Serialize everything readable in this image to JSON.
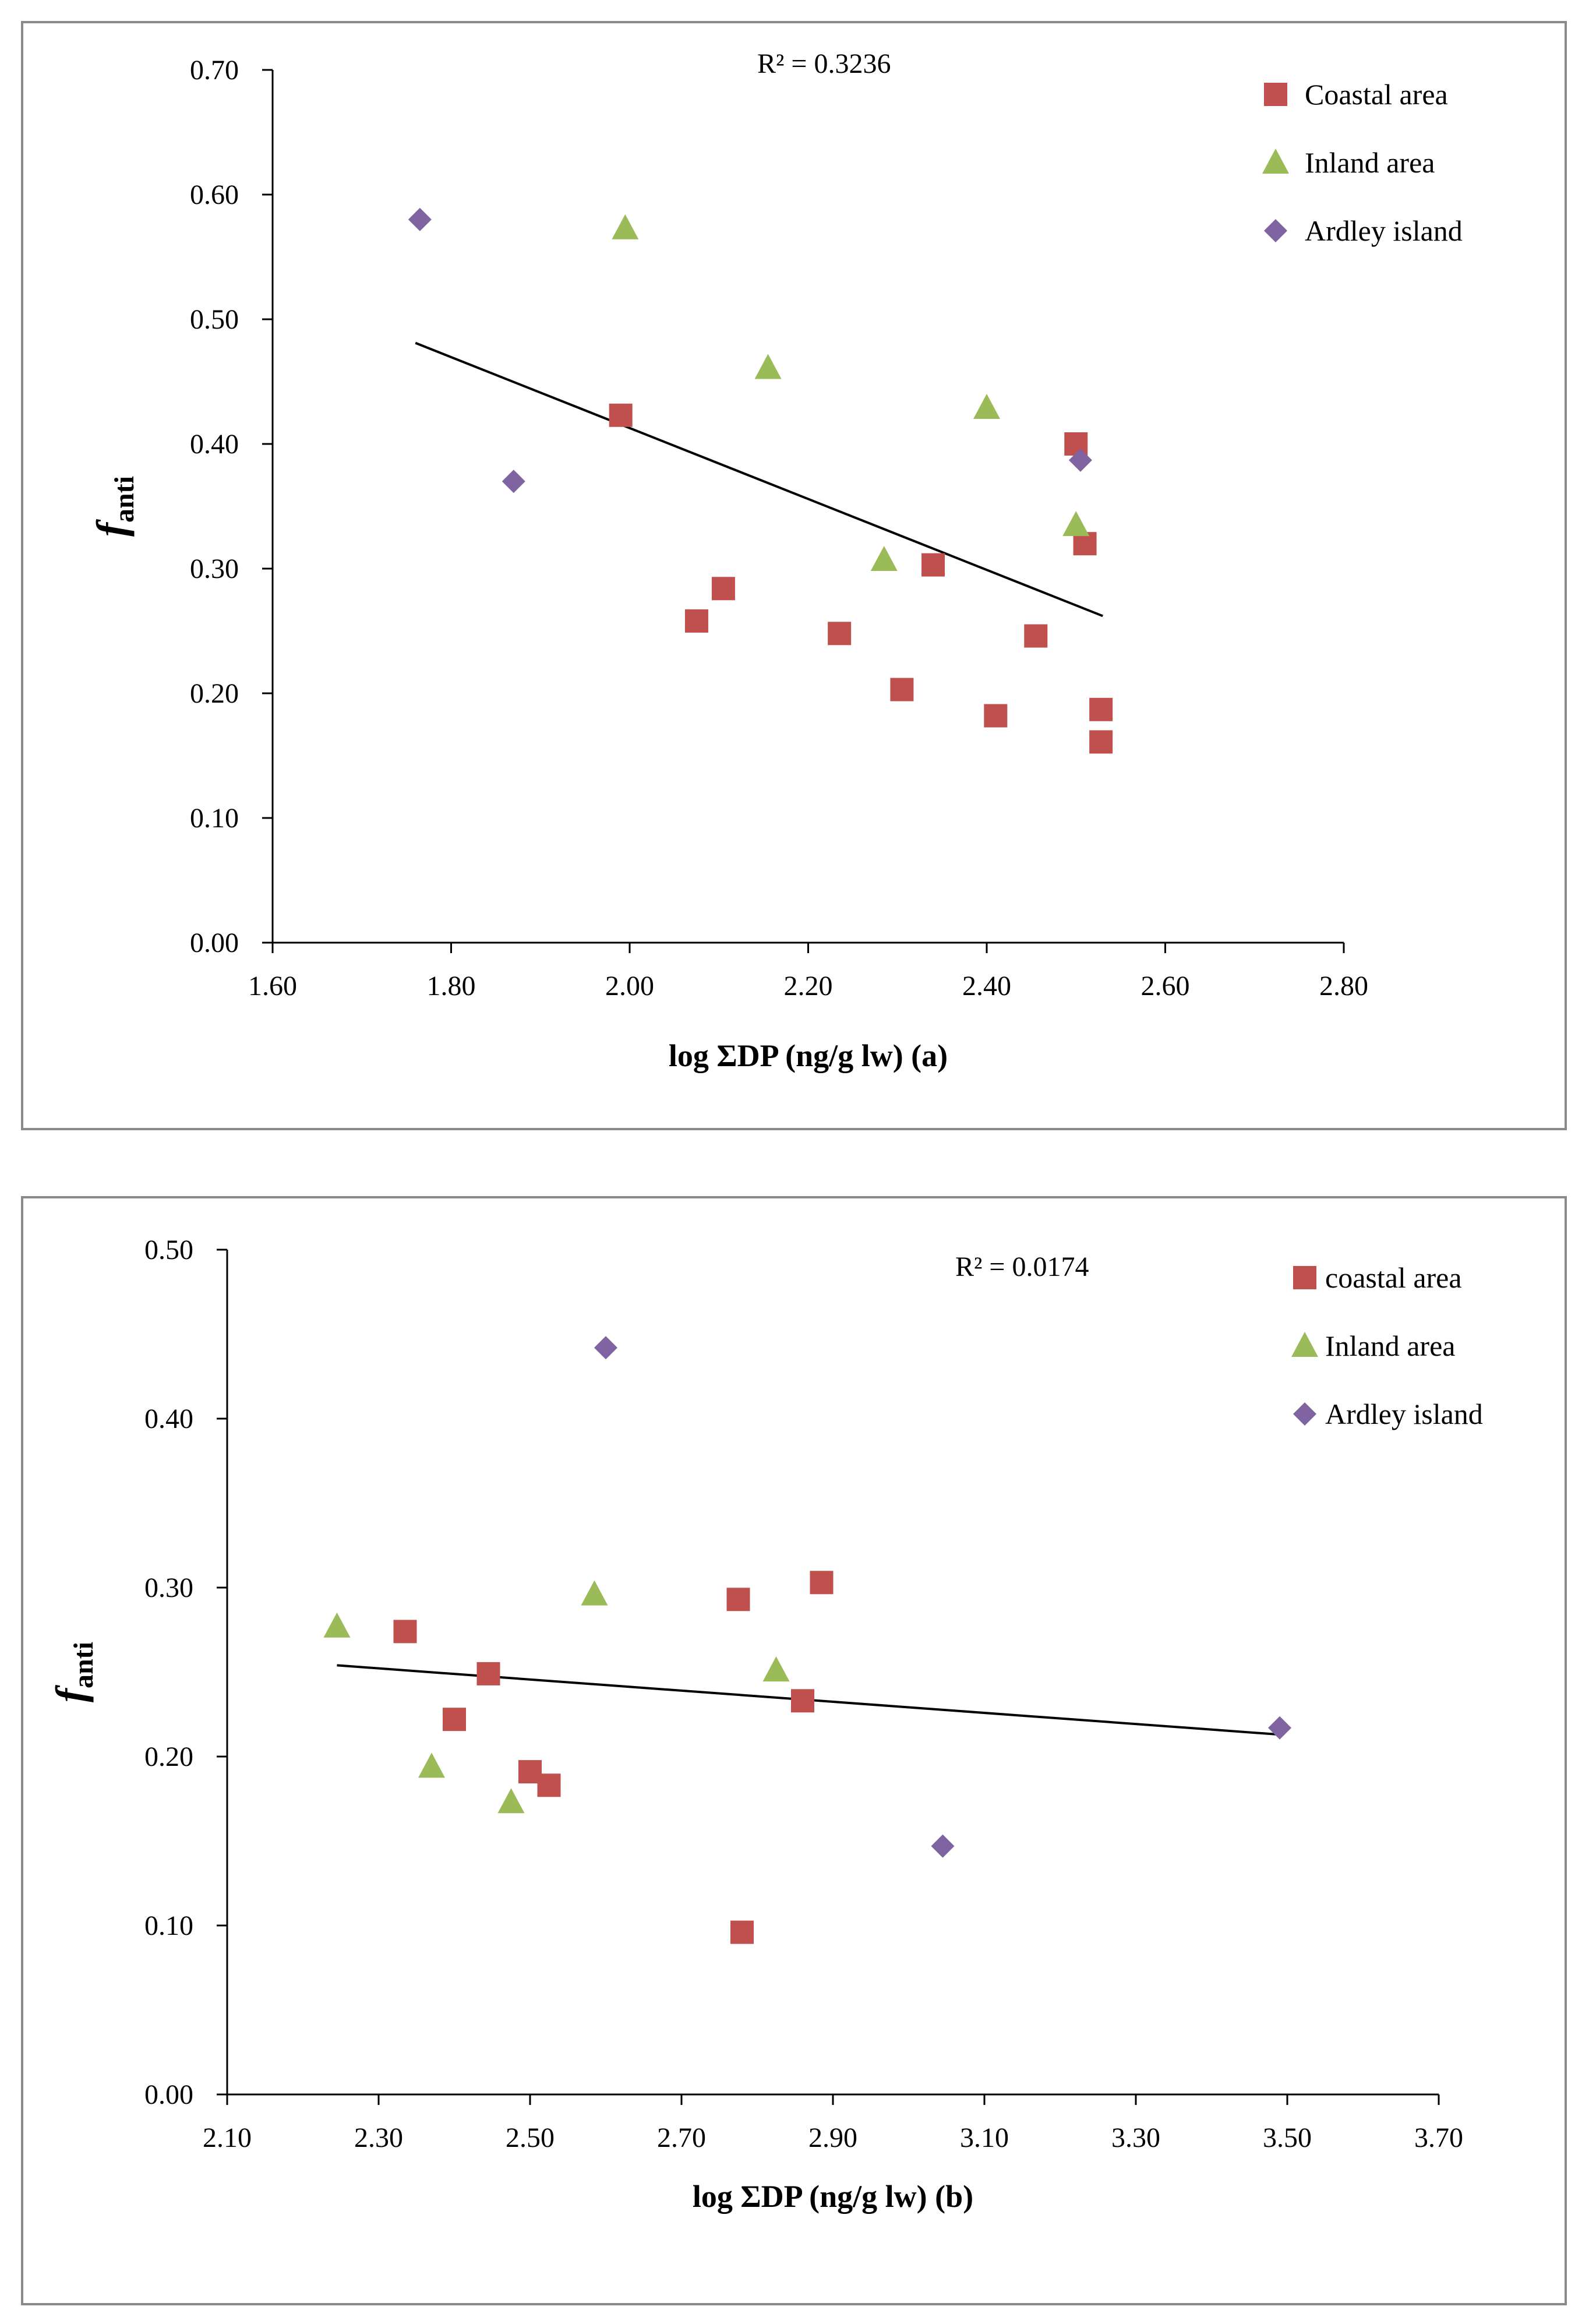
{
  "colors": {
    "coastal": "#C0504D",
    "inland": "#9BBB59",
    "ardley": "#8064A2",
    "axis": "#000000",
    "frame": "#8a8a8a"
  },
  "chart_data": [
    {
      "type": "scatter",
      "panel": "a",
      "title": "",
      "xlabel": "log ΣDP (ng/g lw)  (a)",
      "ylabel": "f",
      "ylabel_sub": "anti",
      "xlim": [
        1.6,
        2.8
      ],
      "ylim": [
        0.0,
        0.7
      ],
      "xticks": [
        "1.60",
        "1.80",
        "2.00",
        "2.20",
        "2.40",
        "2.60",
        "2.80"
      ],
      "yticks": [
        "0.00",
        "0.10",
        "0.20",
        "0.30",
        "0.40",
        "0.50",
        "0.60",
        "0.70"
      ],
      "r2_label": "R² = 0.3236",
      "trendline": {
        "x": [
          1.76,
          2.53
        ],
        "y": [
          0.481,
          0.262
        ]
      },
      "series": [
        {
          "name": "Coastal area",
          "marker": "square",
          "color_key": "coastal",
          "points": [
            [
              1.99,
              0.423
            ],
            [
              2.075,
              0.258
            ],
            [
              2.105,
              0.284
            ],
            [
              2.235,
              0.248
            ],
            [
              2.305,
              0.203
            ],
            [
              2.34,
              0.303
            ],
            [
              2.41,
              0.182
            ],
            [
              2.455,
              0.246
            ],
            [
              2.5,
              0.4
            ],
            [
              2.51,
              0.32
            ],
            [
              2.528,
              0.187
            ],
            [
              2.528,
              0.161
            ]
          ]
        },
        {
          "name": "Inland area",
          "marker": "triangle",
          "color_key": "inland",
          "points": [
            [
              1.995,
              0.573
            ],
            [
              2.155,
              0.461
            ],
            [
              2.285,
              0.307
            ],
            [
              2.4,
              0.429
            ],
            [
              2.5,
              0.335
            ]
          ]
        },
        {
          "name": "Ardley island",
          "marker": "diamond",
          "color_key": "ardley",
          "points": [
            [
              1.765,
              0.58
            ],
            [
              1.87,
              0.37
            ],
            [
              2.505,
              0.387
            ]
          ]
        }
      ]
    },
    {
      "type": "scatter",
      "panel": "b",
      "title": "",
      "xlabel": "log ΣDP (ng/g lw)  (b)",
      "ylabel": "f",
      "ylabel_sub": "anti",
      "xlim": [
        2.1,
        3.7
      ],
      "ylim": [
        0.0,
        0.5
      ],
      "xticks": [
        "2.10",
        "2.30",
        "2.50",
        "2.70",
        "2.90",
        "3.10",
        "3.30",
        "3.50",
        "3.70"
      ],
      "yticks": [
        "0.00",
        "0.10",
        "0.20",
        "0.30",
        "0.40",
        "0.50"
      ],
      "r2_label": "R² = 0.0174",
      "trendline": {
        "x": [
          2.245,
          3.49
        ],
        "y": [
          0.254,
          0.213
        ]
      },
      "series": [
        {
          "name": "coastal area",
          "marker": "square",
          "color_key": "coastal",
          "points": [
            [
              2.335,
              0.274
            ],
            [
              2.4,
              0.222
            ],
            [
              2.445,
              0.249
            ],
            [
              2.5,
              0.191
            ],
            [
              2.525,
              0.183
            ],
            [
              2.775,
              0.293
            ],
            [
              2.78,
              0.096
            ],
            [
              2.86,
              0.233
            ],
            [
              2.885,
              0.303
            ]
          ]
        },
        {
          "name": "Inland area",
          "marker": "triangle",
          "color_key": "inland",
          "points": [
            [
              2.245,
              0.277
            ],
            [
              2.37,
              0.194
            ],
            [
              2.475,
              0.173
            ],
            [
              2.585,
              0.296
            ],
            [
              2.825,
              0.251
            ]
          ]
        },
        {
          "name": "Ardley island",
          "marker": "diamond",
          "color_key": "ardley",
          "points": [
            [
              2.6,
              0.442
            ],
            [
              3.045,
              0.147
            ],
            [
              3.49,
              0.217
            ]
          ]
        }
      ]
    }
  ]
}
